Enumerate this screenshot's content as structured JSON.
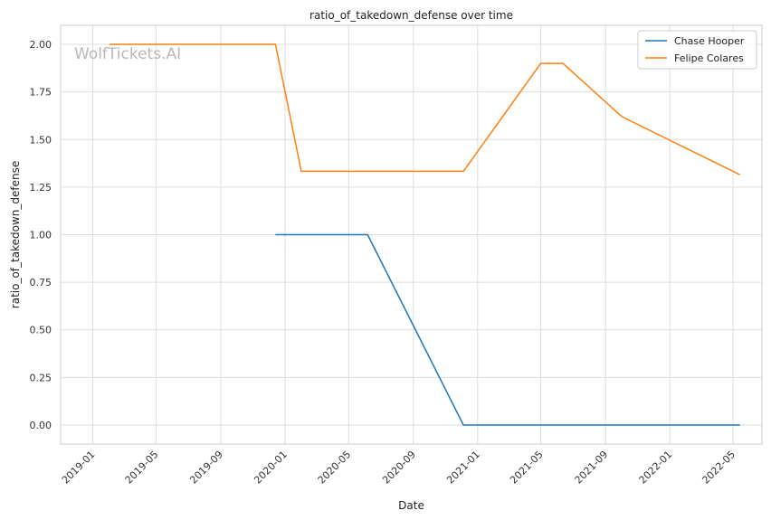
{
  "chart_data": {
    "type": "line",
    "title": "ratio_of_takedown_defense over time",
    "xlabel": "Date",
    "ylabel": "ratio_of_takedown_defense",
    "watermark": "WolfTickets.AI",
    "x_ticks": [
      "2019-01",
      "2019-05",
      "2019-09",
      "2020-01",
      "2020-05",
      "2020-09",
      "2021-01",
      "2021-05",
      "2021-09",
      "2022-01",
      "2022-05"
    ],
    "y_ticks": [
      "0.00",
      "0.25",
      "0.50",
      "0.75",
      "1.00",
      "1.25",
      "1.50",
      "1.75",
      "2.00"
    ],
    "xlim": [
      "2018-11-01",
      "2022-06-25"
    ],
    "ylim": [
      -0.1,
      2.1
    ],
    "grid": true,
    "legend_position": "top-right",
    "series": [
      {
        "name": "Chase Hooper",
        "color": "#1f77b4",
        "points": [
          {
            "x": "2019-12-14",
            "y": 1.0
          },
          {
            "x": "2020-06-06",
            "y": 1.0
          },
          {
            "x": "2020-12-05",
            "y": 0.0
          },
          {
            "x": "2022-05-14",
            "y": 0.0
          }
        ]
      },
      {
        "name": "Felipe Colares",
        "color": "#ff7f0e",
        "points": [
          {
            "x": "2019-02-02",
            "y": 2.0
          },
          {
            "x": "2019-12-14",
            "y": 2.0
          },
          {
            "x": "2020-02-01",
            "y": 1.333
          },
          {
            "x": "2020-12-05",
            "y": 1.333
          },
          {
            "x": "2021-05-01",
            "y": 1.9
          },
          {
            "x": "2021-06-12",
            "y": 1.9
          },
          {
            "x": "2021-10-02",
            "y": 1.62
          },
          {
            "x": "2022-05-14",
            "y": 1.315
          }
        ]
      }
    ]
  }
}
